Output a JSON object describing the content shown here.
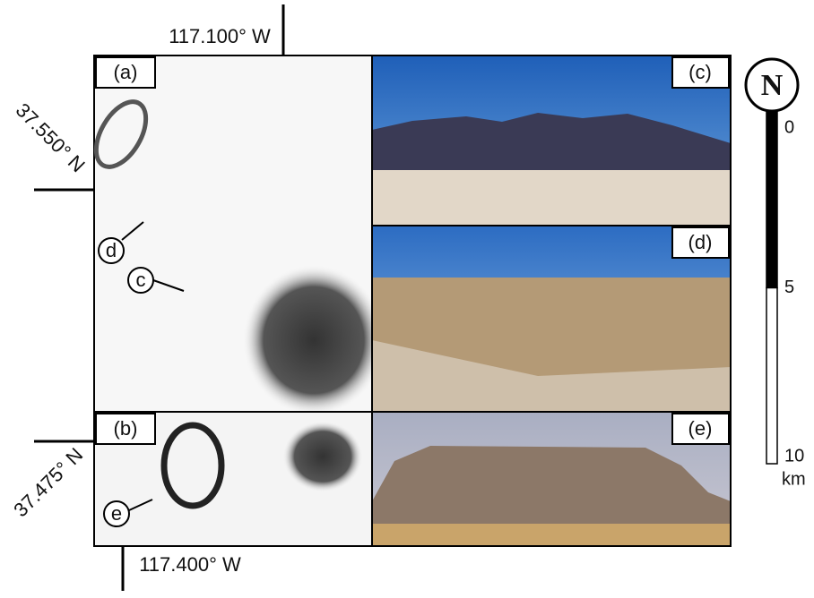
{
  "coordinates": {
    "top_lon": "117.100°  W",
    "upper_lat": "37.550°  N",
    "lower_lat": "37.475°  N",
    "bottom_lon": "117.400°  W"
  },
  "panels": {
    "a": "(a)",
    "b": "(b)",
    "c": "(c)",
    "d": "(d)",
    "e": "(e)"
  },
  "markers": {
    "d": "d",
    "c": "c",
    "e": "e"
  },
  "north_arrow": "N",
  "scale_bar": {
    "ticks": [
      0,
      5,
      10
    ],
    "unit": "km"
  }
}
